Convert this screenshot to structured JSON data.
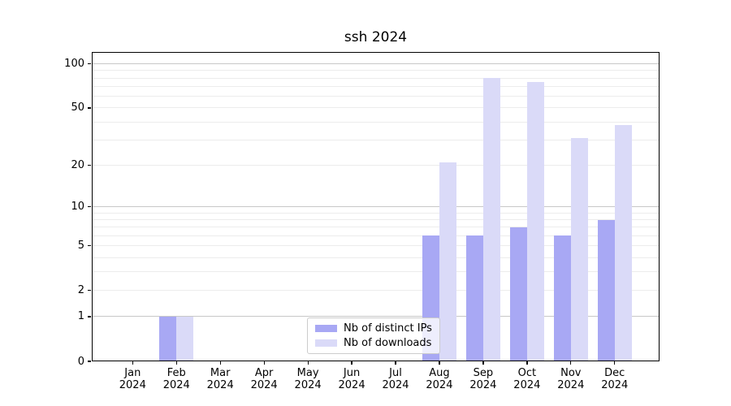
{
  "chart_data": {
    "type": "bar",
    "title": "ssh 2024",
    "x": {
      "months": [
        "Jan",
        "Feb",
        "Mar",
        "Apr",
        "May",
        "Jun",
        "Jul",
        "Aug",
        "Sep",
        "Oct",
        "Nov",
        "Dec"
      ],
      "year": "2024"
    },
    "y_axis": {
      "scale": "log1p",
      "range": [
        0,
        120
      ],
      "ticks": [
        0,
        1,
        2,
        5,
        10,
        20,
        50,
        100
      ],
      "gridlines_major": [
        1,
        10,
        100
      ],
      "gridlines_minor": [
        2,
        3,
        4,
        5,
        6,
        7,
        8,
        9,
        20,
        30,
        40,
        50,
        60,
        70,
        80,
        90
      ]
    },
    "series": [
      {
        "name": "Nb of distinct IPs",
        "color": "#a8a8f4",
        "values": [
          0,
          1,
          0,
          0,
          0,
          0,
          0,
          6,
          6,
          7,
          6,
          8
        ]
      },
      {
        "name": "Nb of downloads",
        "color": "#dadaf8",
        "values": [
          0,
          1,
          0,
          0,
          0,
          0,
          0,
          21,
          80,
          75,
          31,
          38
        ]
      }
    ],
    "legend_position": "lower center",
    "grid": true
  }
}
